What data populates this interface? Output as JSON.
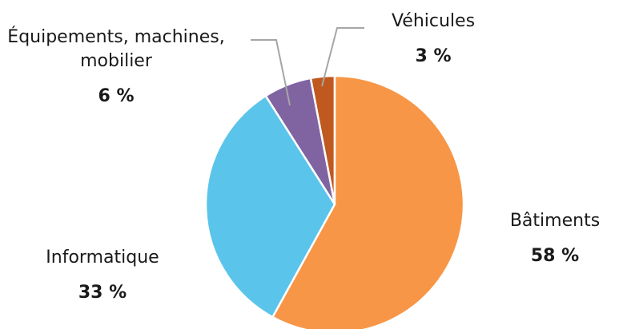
{
  "chart_data": {
    "type": "pie",
    "categories": [
      "Bâtiments",
      "Informatique",
      "Équipements, machines, mobilier",
      "Véhicules"
    ],
    "values": [
      58,
      33,
      6,
      3
    ],
    "value_labels": [
      "58 %",
      "33 %",
      "6 %",
      "3 %"
    ],
    "colors": [
      "#f79646",
      "#5bc4ea",
      "#8064a2",
      "#c0591f"
    ]
  }
}
